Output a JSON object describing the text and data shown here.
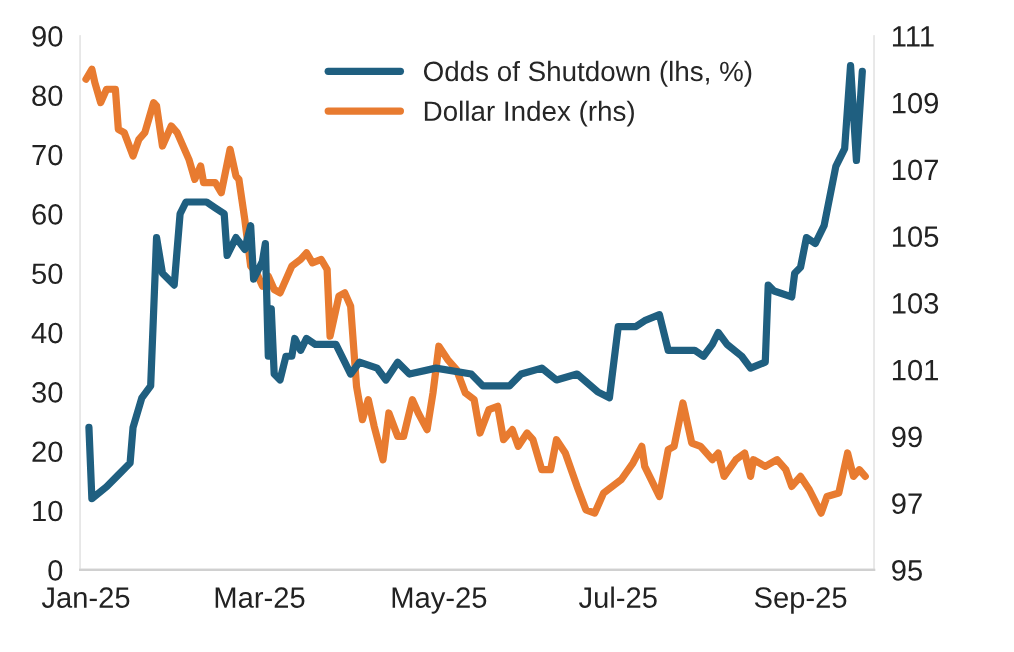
{
  "chart_data": {
    "type": "line",
    "xlim": [
      "2024-12-30",
      "2025-09-26"
    ],
    "xticks": [
      {
        "value": "2025-01-01",
        "label": "Jan-25"
      },
      {
        "value": "2025-03-01",
        "label": "Mar-25"
      },
      {
        "value": "2025-05-01",
        "label": "May-25"
      },
      {
        "value": "2025-07-01",
        "label": "Jul-25"
      },
      {
        "value": "2025-09-01",
        "label": "Sep-25"
      }
    ],
    "ylim": [
      0,
      90
    ],
    "yticks": [
      0,
      10,
      20,
      30,
      40,
      50,
      60,
      70,
      80,
      90
    ],
    "y2lim": [
      95,
      111
    ],
    "y2ticks": [
      95,
      97,
      99,
      101,
      103,
      105,
      107,
      109,
      111
    ],
    "grid": false,
    "legend": "top",
    "marker": "none",
    "line_style": "solid",
    "series": [
      {
        "name": "Odds of Shutdown (lhs, %)",
        "color": "#1f5f80",
        "axis": "y",
        "x": [
          "2025-01-02",
          "2025-01-03",
          "2025-01-08",
          "2025-01-12",
          "2025-01-16",
          "2025-01-17",
          "2025-01-20",
          "2025-01-23",
          "2025-01-25",
          "2025-01-27",
          "2025-01-31",
          "2025-02-02",
          "2025-02-04",
          "2025-02-11",
          "2025-02-14",
          "2025-02-17",
          "2025-02-18",
          "2025-02-21",
          "2025-02-24",
          "2025-02-26",
          "2025-02-27",
          "2025-03-02",
          "2025-03-03",
          "2025-03-04",
          "2025-03-05",
          "2025-03-06",
          "2025-03-08",
          "2025-03-10",
          "2025-03-12",
          "2025-03-13",
          "2025-03-15",
          "2025-03-17",
          "2025-03-20",
          "2025-03-27",
          "2025-03-30",
          "2025-04-01",
          "2025-04-04",
          "2025-04-10",
          "2025-04-13",
          "2025-04-17",
          "2025-04-21",
          "2025-04-30",
          "2025-05-12",
          "2025-05-16",
          "2025-05-25",
          "2025-05-29",
          "2025-06-05",
          "2025-06-10",
          "2025-06-17",
          "2025-06-24",
          "2025-06-28",
          "2025-07-01",
          "2025-07-07",
          "2025-07-10",
          "2025-07-15",
          "2025-07-18",
          "2025-07-27",
          "2025-07-30",
          "2025-08-02",
          "2025-08-04",
          "2025-08-07",
          "2025-08-12",
          "2025-08-15",
          "2025-08-20",
          "2025-08-21",
          "2025-08-23",
          "2025-08-29",
          "2025-08-30",
          "2025-09-01",
          "2025-09-03",
          "2025-09-06",
          "2025-09-09",
          "2025-09-13",
          "2025-09-16",
          "2025-09-18",
          "2025-09-20",
          "2025-09-22"
        ],
        "values": [
          24,
          12,
          14,
          16,
          18,
          24,
          29,
          31,
          56,
          50,
          48,
          60,
          62,
          62,
          61,
          60,
          53,
          56,
          54,
          58,
          49,
          52,
          55,
          36,
          44,
          33,
          32,
          36,
          36,
          39,
          37,
          39,
          38,
          38,
          35,
          33,
          35,
          34,
          32,
          35,
          33,
          34,
          33,
          31,
          31,
          33,
          34,
          32,
          33,
          30,
          29,
          41,
          41,
          42,
          43,
          37,
          37,
          36,
          38,
          40,
          38,
          36,
          34,
          35,
          48,
          47,
          46,
          50,
          51,
          56,
          55,
          58,
          68,
          71,
          85,
          69,
          84
        ]
      },
      {
        "name": "Dollar Index (rhs)",
        "color": "#e87b30",
        "axis": "y2",
        "x": [
          "2025-01-01",
          "2025-01-03",
          "2025-01-04",
          "2025-01-06",
          "2025-01-08",
          "2025-01-11",
          "2025-01-12",
          "2025-01-14",
          "2025-01-17",
          "2025-01-19",
          "2025-01-21",
          "2025-01-24",
          "2025-01-25",
          "2025-01-27",
          "2025-01-30",
          "2025-02-01",
          "2025-02-05",
          "2025-02-07",
          "2025-02-09",
          "2025-02-10",
          "2025-02-14",
          "2025-02-16",
          "2025-02-19",
          "2025-02-21",
          "2025-02-22",
          "2025-02-24",
          "2025-02-26",
          "2025-02-28",
          "2025-03-02",
          "2025-03-04",
          "2025-03-06",
          "2025-03-08",
          "2025-03-12",
          "2025-03-15",
          "2025-03-17",
          "2025-03-19",
          "2025-03-22",
          "2025-03-24",
          "2025-03-25",
          "2025-03-28",
          "2025-03-30",
          "2025-04-01",
          "2025-04-03",
          "2025-04-05",
          "2025-04-07",
          "2025-04-09",
          "2025-04-12",
          "2025-04-14",
          "2025-04-17",
          "2025-04-19",
          "2025-04-22",
          "2025-04-24",
          "2025-04-27",
          "2025-04-29",
          "2025-05-01",
          "2025-05-04",
          "2025-05-07",
          "2025-05-10",
          "2025-05-13",
          "2025-05-15",
          "2025-05-18",
          "2025-05-21",
          "2025-05-23",
          "2025-05-26",
          "2025-05-28",
          "2025-05-31",
          "2025-06-02",
          "2025-06-05",
          "2025-06-08",
          "2025-06-10",
          "2025-06-13",
          "2025-06-17",
          "2025-06-20",
          "2025-06-23",
          "2025-06-26",
          "2025-06-29",
          "2025-07-02",
          "2025-07-06",
          "2025-07-09",
          "2025-07-10",
          "2025-07-15",
          "2025-07-18",
          "2025-07-20",
          "2025-07-23",
          "2025-07-26",
          "2025-07-29",
          "2025-08-02",
          "2025-08-04",
          "2025-08-06",
          "2025-08-10",
          "2025-08-13",
          "2025-08-15",
          "2025-08-16",
          "2025-08-20",
          "2025-08-24",
          "2025-08-27",
          "2025-08-29",
          "2025-09-01",
          "2025-09-04",
          "2025-09-08",
          "2025-09-10",
          "2025-09-14",
          "2025-09-17",
          "2025-09-19",
          "2025-09-21",
          "2025-09-23"
        ],
        "values": [
          109.7,
          110.0,
          109.6,
          109.0,
          109.4,
          109.4,
          108.2,
          108.1,
          107.4,
          107.9,
          108.1,
          109.0,
          108.9,
          107.7,
          108.3,
          108.1,
          107.3,
          106.7,
          107.1,
          106.6,
          106.6,
          106.3,
          107.6,
          106.8,
          106.7,
          105.5,
          104.1,
          103.9,
          103.5,
          103.8,
          103.4,
          103.3,
          104.1,
          104.3,
          104.5,
          104.2,
          104.3,
          104.0,
          102.0,
          103.2,
          103.3,
          102.9,
          100.5,
          99.5,
          100.1,
          99.3,
          98.3,
          99.7,
          99.0,
          99.0,
          100.1,
          99.7,
          99.2,
          100.3,
          101.7,
          101.3,
          101.0,
          100.3,
          100.1,
          99.1,
          99.8,
          99.9,
          98.9,
          99.2,
          98.7,
          99.1,
          98.9,
          98.0,
          98.0,
          98.9,
          98.5,
          97.5,
          96.8,
          96.7,
          97.3,
          97.5,
          97.7,
          98.2,
          98.7,
          98.1,
          97.2,
          98.6,
          98.7,
          100.0,
          98.8,
          98.7,
          98.3,
          98.5,
          97.8,
          98.3,
          98.5,
          97.8,
          98.3,
          98.1,
          98.3,
          98.0,
          97.5,
          97.8,
          97.4,
          96.7,
          97.2,
          97.3,
          98.5,
          97.8,
          98.0,
          97.8
        ]
      }
    ]
  }
}
